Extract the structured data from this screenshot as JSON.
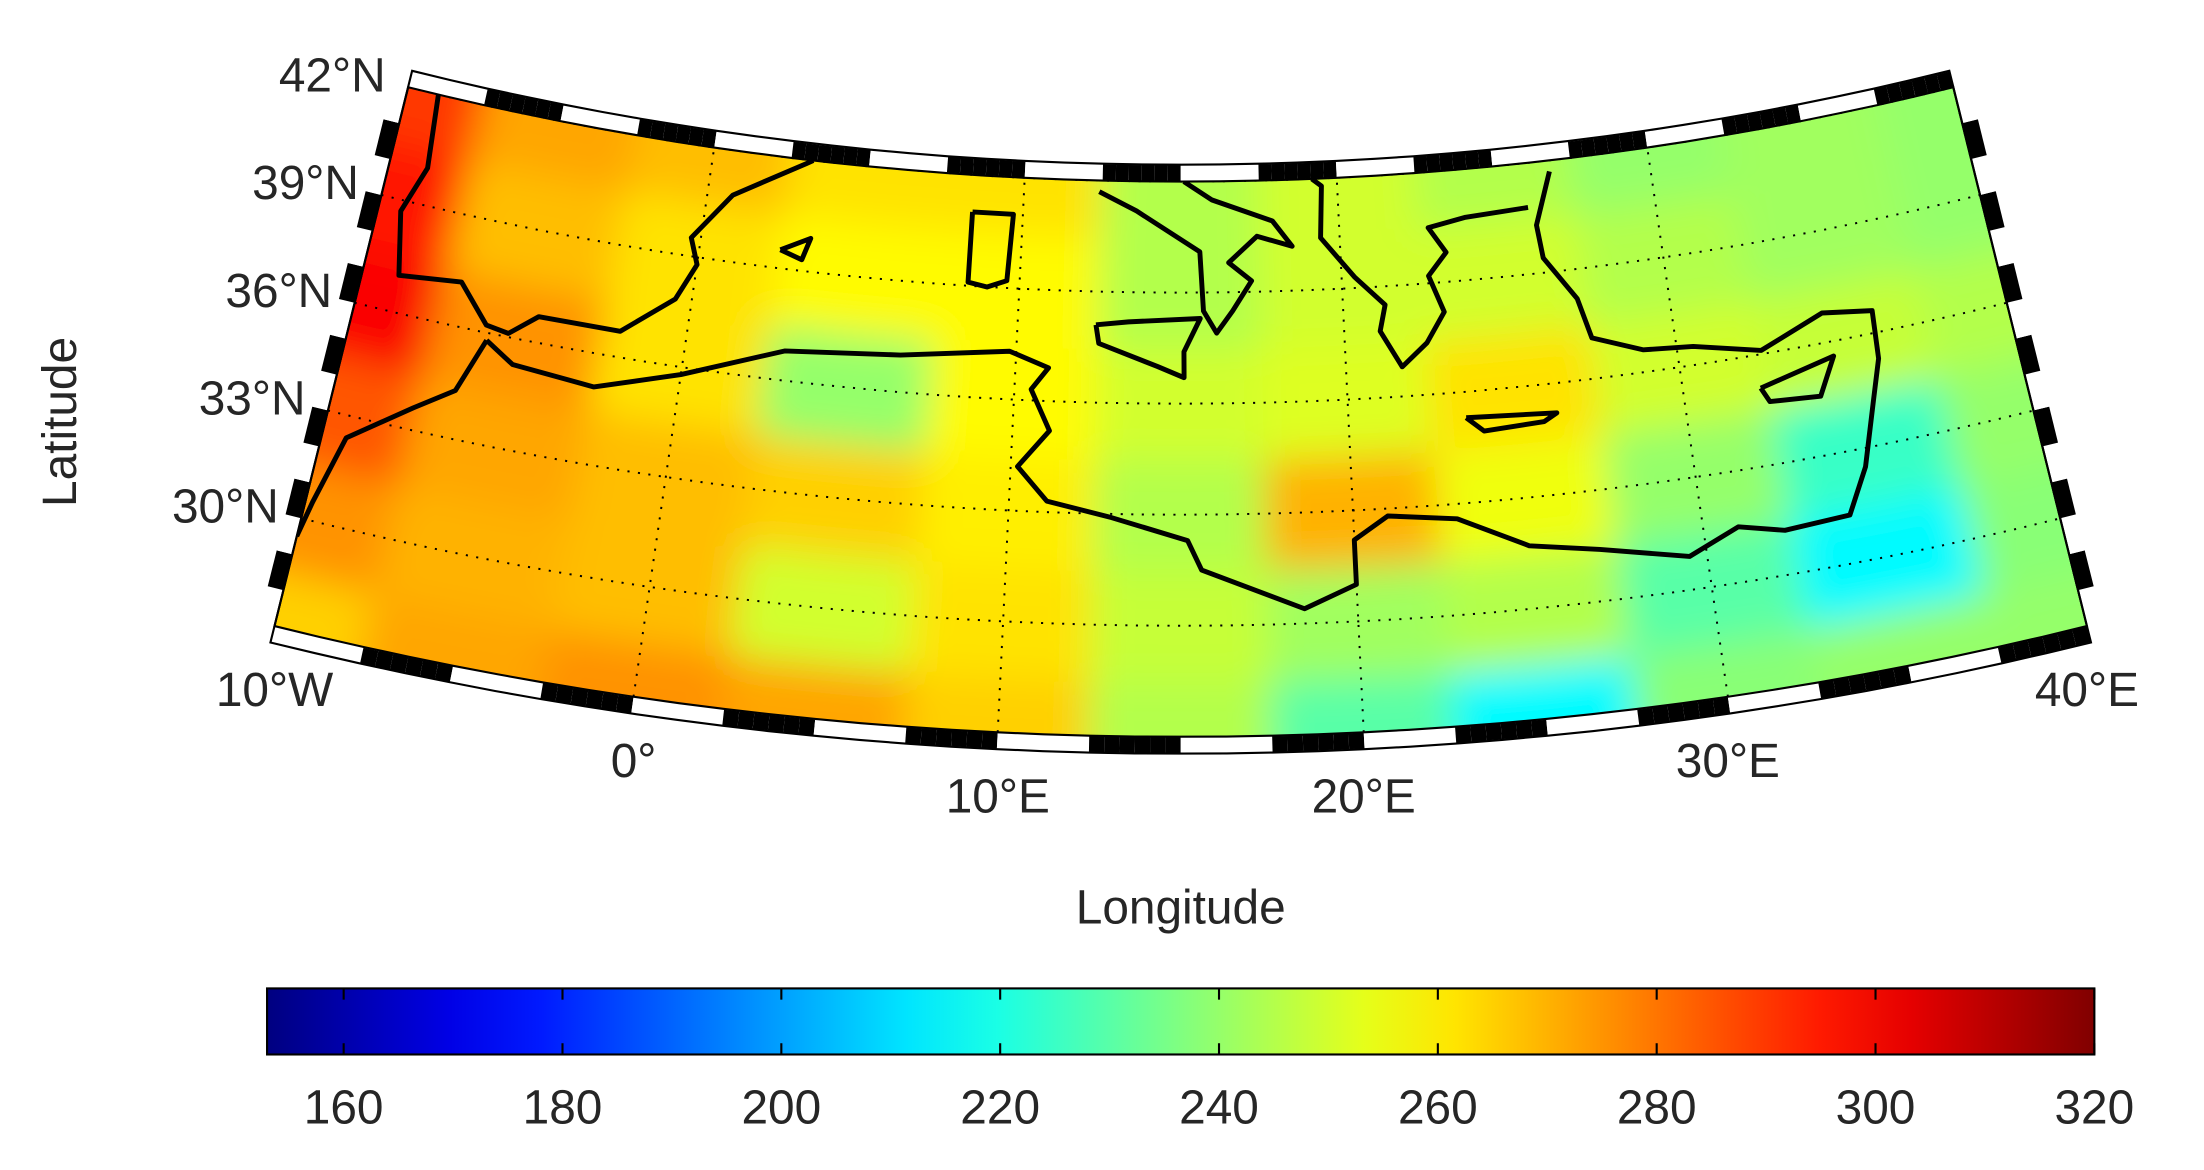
{
  "chart_data": {
    "type": "map",
    "xlabel": "Longitude",
    "ylabel": "Latitude",
    "xlim": [
      -10,
      40
    ],
    "ylim": [
      27,
      42
    ],
    "xticks": [
      {
        "value": -10,
        "label": "10°W"
      },
      {
        "value": 0,
        "label": "0°"
      },
      {
        "value": 10,
        "label": "10°E"
      },
      {
        "value": 20,
        "label": "20°E"
      },
      {
        "value": 30,
        "label": "30°E"
      },
      {
        "value": 40,
        "label": "40°E"
      }
    ],
    "yticks": [
      {
        "value": 30,
        "label": "30°N"
      },
      {
        "value": 33,
        "label": "33°N"
      },
      {
        "value": 36,
        "label": "36°N"
      },
      {
        "value": 39,
        "label": "39°N"
      },
      {
        "value": 42,
        "label": "42°N"
      }
    ],
    "grid": true,
    "colormap": "jet",
    "clim": [
      153,
      320
    ],
    "cticks": [
      160,
      180,
      200,
      220,
      240,
      260,
      280,
      300,
      320
    ],
    "field": {
      "lons": [
        -10,
        -5,
        0,
        5,
        10,
        15,
        20,
        25,
        30,
        35,
        40
      ],
      "lats": [
        27,
        30,
        33,
        36,
        39,
        42
      ],
      "values": [
        [
          265,
          272,
          275,
          272,
          265,
          245,
          230,
          215,
          238,
          240,
          240
        ],
        [
          275,
          270,
          268,
          250,
          262,
          248,
          242,
          245,
          230,
          215,
          238
        ],
        [
          285,
          272,
          268,
          265,
          260,
          245,
          270,
          255,
          240,
          225,
          240
        ],
        [
          300,
          275,
          262,
          240,
          258,
          250,
          252,
          262,
          250,
          248,
          245
        ],
        [
          295,
          268,
          262,
          258,
          258,
          245,
          250,
          250,
          245,
          242,
          240
        ],
        [
          290,
          272,
          268,
          262,
          262,
          245,
          250,
          245,
          240,
          242,
          240
        ]
      ]
    }
  }
}
